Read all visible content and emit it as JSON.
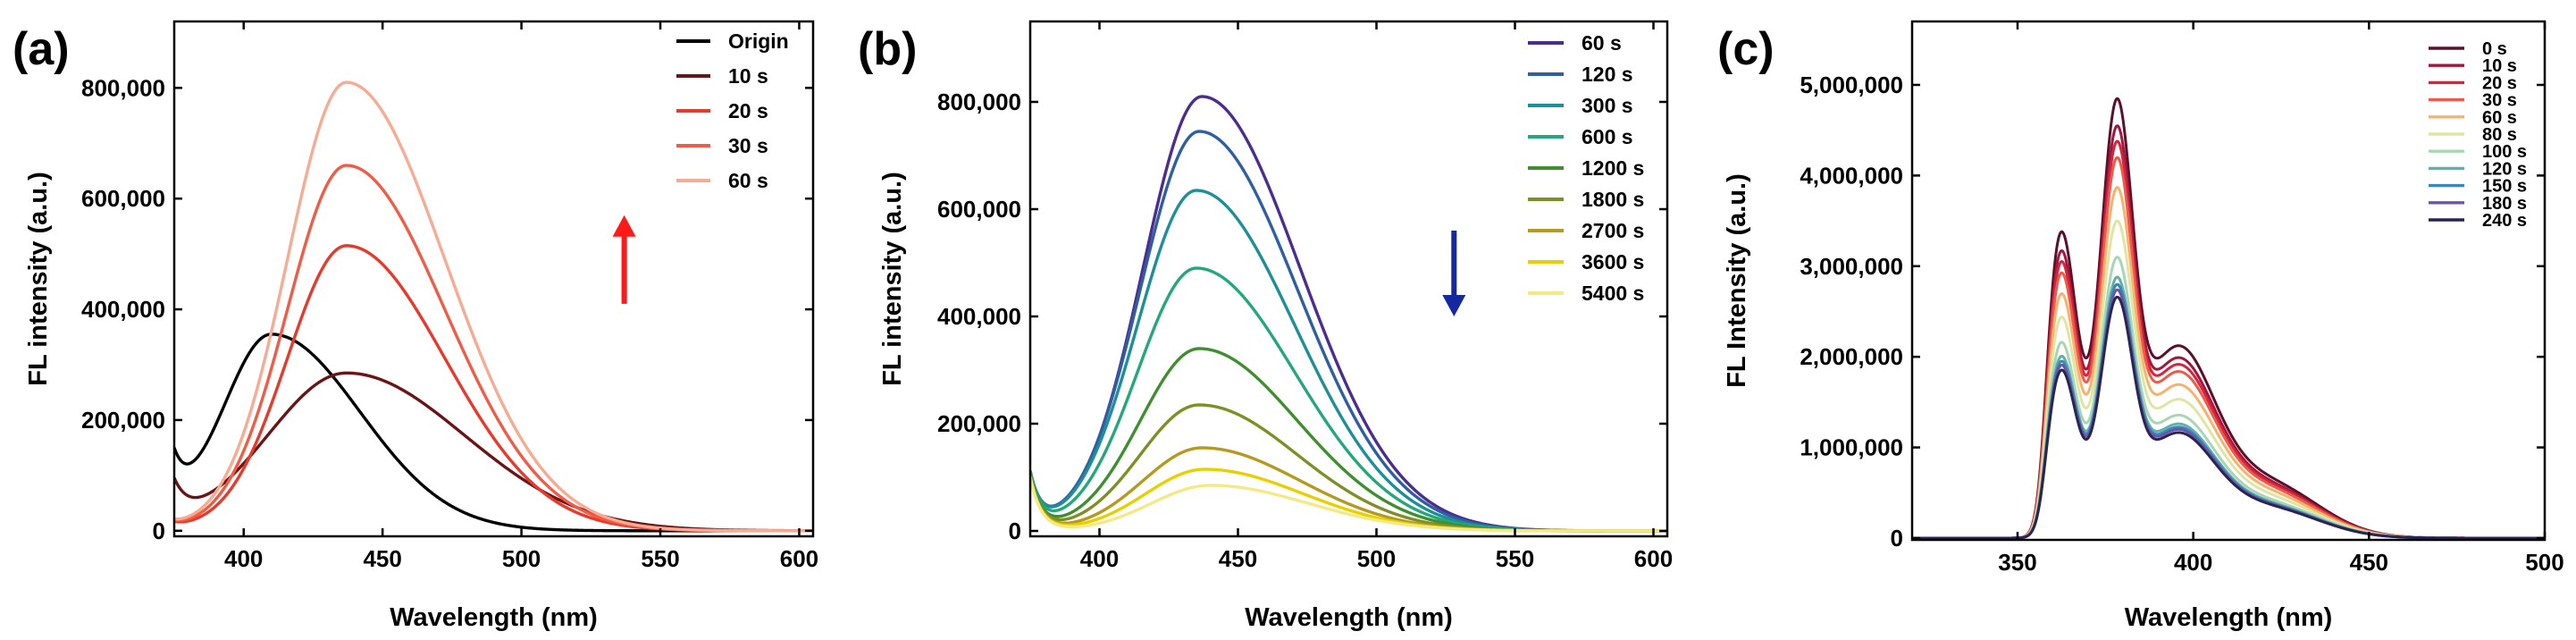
{
  "chart_data": [
    {
      "type": "line",
      "panel_label": "(a)",
      "xlabel": "Wavelength (nm)",
      "ylabel": "FL intensity (a.u.)",
      "xlim": [
        375,
        605
      ],
      "ylim": [
        -10000,
        920000
      ],
      "xticks": [
        400,
        450,
        500,
        550,
        600
      ],
      "xtick_labels": [
        "400",
        "450",
        "500",
        "550",
        "600"
      ],
      "yticks": [
        0,
        200000,
        400000,
        600000,
        800000
      ],
      "ytick_labels": [
        "0",
        "200,000",
        "400,000",
        "600,000",
        "800,000"
      ],
      "legend": "top-right",
      "arrow": {
        "direction": "up",
        "color": "#ff1a1a",
        "x": 537,
        "y_from": 410000,
        "y_to": 570000
      },
      "series": [
        {
          "name": "Origin",
          "color": "#000000",
          "peak": 410,
          "amp": 355000,
          "w_left": 25,
          "w_right": 45,
          "edge": 100000,
          "edge_decay": 5
        },
        {
          "name": "10 s",
          "color": "#6b1418",
          "peak": 437,
          "amp": 285000,
          "w_left": 40,
          "w_right": 60,
          "edge": 70000,
          "edge_decay": 5
        },
        {
          "name": "20 s",
          "color": "#e8392b",
          "peak": 437,
          "amp": 515000,
          "w_left": 30,
          "w_right": 50,
          "edge": 10000,
          "edge_decay": 5
        },
        {
          "name": "30 s",
          "color": "#f25b45",
          "peak": 437,
          "amp": 660000,
          "w_left": 30,
          "w_right": 50,
          "edge": 10000,
          "edge_decay": 5
        },
        {
          "name": "60 s",
          "color": "#f7ab93",
          "peak": 437,
          "amp": 810000,
          "w_left": 30,
          "w_right": 50,
          "edge": 10000,
          "edge_decay": 5
        }
      ]
    },
    {
      "type": "line",
      "panel_label": "(b)",
      "xlabel": "Wavelength (nm)",
      "ylabel": "FL intensity (a.u.)",
      "xlim": [
        375,
        605
      ],
      "ylim": [
        -10000,
        950000
      ],
      "xticks": [
        400,
        450,
        500,
        550,
        600
      ],
      "xtick_labels": [
        "400",
        "450",
        "500",
        "550",
        "600"
      ],
      "yticks": [
        0,
        200000,
        400000,
        600000,
        800000
      ],
      "ytick_labels": [
        "0",
        "200,000",
        "400,000",
        "600,000",
        "800,000"
      ],
      "legend": "top-right",
      "arrow": {
        "direction": "down",
        "color": "#1428a0",
        "x": 528,
        "y_from": 560000,
        "y_to": 400000
      },
      "series": [
        {
          "name": "60 s",
          "color": "#4b2d8f",
          "peak": 437,
          "amp": 810000,
          "w_left": 30,
          "w_right": 50,
          "edge": 100000,
          "edge_decay": 4
        },
        {
          "name": "120 s",
          "color": "#2e5fa3",
          "peak": 436,
          "amp": 745000,
          "w_left": 30,
          "w_right": 50,
          "edge": 100000,
          "edge_decay": 4
        },
        {
          "name": "300 s",
          "color": "#1d8f99",
          "peak": 435,
          "amp": 635000,
          "w_left": 30,
          "w_right": 50,
          "edge": 100000,
          "edge_decay": 4
        },
        {
          "name": "600 s",
          "color": "#24a87a",
          "peak": 435,
          "amp": 490000,
          "w_left": 30,
          "w_right": 50,
          "edge": 100000,
          "edge_decay": 4
        },
        {
          "name": "1200 s",
          "color": "#3f8f2e",
          "peak": 436,
          "amp": 340000,
          "w_left": 30,
          "w_right": 50,
          "edge": 100000,
          "edge_decay": 4
        },
        {
          "name": "1800 s",
          "color": "#7f8f25",
          "peak": 436,
          "amp": 235000,
          "w_left": 30,
          "w_right": 50,
          "edge": 100000,
          "edge_decay": 4
        },
        {
          "name": "2700 s",
          "color": "#b59a1e",
          "peak": 437,
          "amp": 155000,
          "w_left": 30,
          "w_right": 50,
          "edge": 100000,
          "edge_decay": 4
        },
        {
          "name": "3600 s",
          "color": "#e8d000",
          "peak": 438,
          "amp": 115000,
          "w_left": 30,
          "w_right": 50,
          "edge": 100000,
          "edge_decay": 4
        },
        {
          "name": "5400 s",
          "color": "#f3e986",
          "peak": 440,
          "amp": 85000,
          "w_left": 30,
          "w_right": 50,
          "edge": 100000,
          "edge_decay": 4
        }
      ]
    },
    {
      "type": "line",
      "panel_label": "(c)",
      "xlabel": "Wavelength (nm)",
      "ylabel": "FL Intensity (a.u.)",
      "xlim": [
        320,
        500
      ],
      "ylim": [
        -20000,
        5700000
      ],
      "xticks": [
        350,
        400,
        450,
        500
      ],
      "xtick_labels": [
        "350",
        "400",
        "450",
        "500"
      ],
      "yticks": [
        0,
        1000000,
        2000000,
        3000000,
        4000000,
        5000000
      ],
      "ytick_labels": [
        "0",
        "1,000,000",
        "2,000,000",
        "3,000,000",
        "4,000,000",
        "5,000,000"
      ],
      "legend": "top-right",
      "series": [
        {
          "name": "0 s",
          "color": "#5a0f2a",
          "amp": 4850000
        },
        {
          "name": "10 s",
          "color": "#a3163d",
          "amp": 4550000
        },
        {
          "name": "20 s",
          "color": "#d6243a",
          "amp": 4380000
        },
        {
          "name": "30 s",
          "color": "#ee5a4a",
          "amp": 4200000
        },
        {
          "name": "60 s",
          "color": "#f7b26e",
          "amp": 3870000
        },
        {
          "name": "80 s",
          "color": "#dfe6a3",
          "amp": 3500000
        },
        {
          "name": "100 s",
          "color": "#a8d6b4",
          "amp": 3100000
        },
        {
          "name": "120 s",
          "color": "#5fb3a6",
          "amp": 2880000
        },
        {
          "name": "150 s",
          "color": "#3a86bf",
          "amp": 2800000
        },
        {
          "name": "180 s",
          "color": "#6a55a8",
          "amp": 2740000
        },
        {
          "name": "240 s",
          "color": "#2a2450",
          "amp": 2660000
        }
      ]
    }
  ]
}
